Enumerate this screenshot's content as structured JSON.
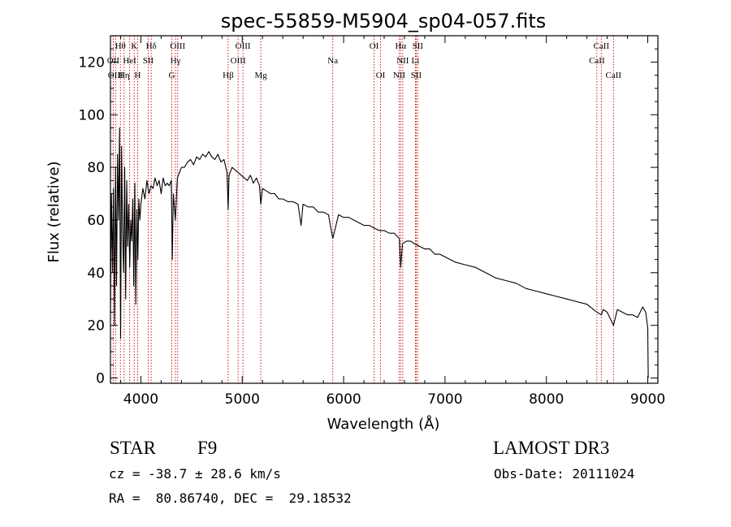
{
  "chart_data": {
    "type": "line",
    "title": "spec-55859-M5904_sp04-057.fits",
    "xlabel": "Wavelength (Å)",
    "ylabel": "Flux (relative)",
    "xlim": [
      3700,
      9100
    ],
    "ylim": [
      -2,
      130
    ],
    "xticks": [
      4000,
      5000,
      6000,
      7000,
      8000,
      9000
    ],
    "yticks": [
      0,
      20,
      40,
      60,
      80,
      100,
      120
    ],
    "grid": false,
    "series": [
      {
        "name": "spectrum",
        "x": [
          3700,
          3710,
          3720,
          3730,
          3740,
          3750,
          3760,
          3770,
          3780,
          3790,
          3800,
          3810,
          3820,
          3830,
          3840,
          3850,
          3860,
          3870,
          3880,
          3890,
          3900,
          3910,
          3920,
          3930,
          3940,
          3950,
          3960,
          3970,
          3980,
          3990,
          4000,
          4020,
          4040,
          4060,
          4080,
          4100,
          4120,
          4140,
          4160,
          4180,
          4200,
          4220,
          4240,
          4260,
          4280,
          4300,
          4310,
          4320,
          4340,
          4360,
          4380,
          4400,
          4430,
          4460,
          4490,
          4520,
          4550,
          4580,
          4610,
          4640,
          4670,
          4700,
          4730,
          4760,
          4790,
          4820,
          4850,
          4861,
          4870,
          4900,
          4930,
          4960,
          4990,
          5020,
          5050,
          5080,
          5110,
          5140,
          5170,
          5183,
          5200,
          5240,
          5280,
          5320,
          5360,
          5400,
          5450,
          5500,
          5550,
          5580,
          5600,
          5650,
          5700,
          5750,
          5800,
          5850,
          5893,
          5950,
          6000,
          6050,
          6100,
          6150,
          6200,
          6250,
          6300,
          6350,
          6400,
          6450,
          6500,
          6550,
          6563,
          6580,
          6620,
          6660,
          6700,
          6750,
          6800,
          6850,
          6900,
          6950,
          7000,
          7100,
          7200,
          7300,
          7400,
          7500,
          7600,
          7700,
          7800,
          7900,
          8000,
          8100,
          8200,
          8300,
          8400,
          8498,
          8542,
          8560,
          8600,
          8662,
          8700,
          8750,
          8800,
          8850,
          8900,
          8950,
          8980,
          9000,
          9005
        ],
        "y": [
          25,
          70,
          40,
          72,
          20,
          80,
          35,
          85,
          60,
          95,
          15,
          88,
          55,
          40,
          80,
          30,
          75,
          50,
          66,
          42,
          60,
          52,
          68,
          35,
          74,
          28,
          64,
          45,
          68,
          60,
          66,
          72,
          68,
          75,
          70,
          73,
          72,
          76,
          73,
          75,
          70,
          76,
          73,
          74,
          73,
          75,
          45,
          70,
          60,
          76,
          78,
          80,
          80,
          82,
          83,
          81,
          84,
          83,
          85,
          84,
          86,
          84,
          83,
          85,
          82,
          83,
          78,
          64,
          77,
          80,
          79,
          78,
          77,
          76,
          75,
          77,
          74,
          76,
          73,
          66,
          72,
          71,
          70,
          70,
          68,
          68,
          67,
          67,
          66,
          58,
          66,
          65,
          65,
          63,
          63,
          62,
          53,
          62,
          61,
          61,
          60,
          59,
          58,
          58,
          57,
          56,
          56,
          55,
          55,
          53,
          42,
          51,
          52,
          52,
          51,
          50,
          49,
          49,
          47,
          47,
          46,
          44,
          43,
          42,
          40,
          38,
          37,
          36,
          34,
          33,
          32,
          31,
          30,
          29,
          28,
          25,
          24,
          26,
          25,
          20,
          26,
          25,
          24,
          24,
          23,
          27,
          25,
          19,
          0
        ]
      }
    ],
    "line_labels": [
      {
        "text": "Hθ",
        "x": 3798,
        "row": 1
      },
      {
        "text": "K",
        "x": 3934,
        "row": 1
      },
      {
        "text": "Hδ",
        "x": 4102,
        "row": 1
      },
      {
        "text": "OIII",
        "x": 4363,
        "row": 1
      },
      {
        "text": "OIII",
        "x": 5007,
        "row": 1
      },
      {
        "text": "OI",
        "x": 6300,
        "row": 1
      },
      {
        "text": "Hα",
        "x": 6563,
        "row": 1
      },
      {
        "text": "SII",
        "x": 6731,
        "row": 1
      },
      {
        "text": "CaII",
        "x": 8542,
        "row": 1
      },
      {
        "text": "OII",
        "x": 3727,
        "row": 2
      },
      {
        "text": "HeI",
        "x": 3889,
        "row": 2
      },
      {
        "text": "SII",
        "x": 4072,
        "row": 2
      },
      {
        "text": "Hγ",
        "x": 4341,
        "row": 2
      },
      {
        "text": "OIII",
        "x": 4959,
        "row": 2
      },
      {
        "text": "Na",
        "x": 5893,
        "row": 2
      },
      {
        "text": "NII",
        "x": 6583,
        "row": 2
      },
      {
        "text": "Li",
        "x": 6708,
        "row": 2
      },
      {
        "text": "CaII",
        "x": 8498,
        "row": 2
      },
      {
        "text": "OIII",
        "x": 3750,
        "row": 3
      },
      {
        "text": "Hη",
        "x": 3835,
        "row": 3
      },
      {
        "text": "H",
        "x": 3968,
        "row": 3
      },
      {
        "text": "G",
        "x": 4305,
        "row": 3
      },
      {
        "text": "Hβ",
        "x": 4861,
        "row": 3
      },
      {
        "text": "Mg",
        "x": 5183,
        "row": 3
      },
      {
        "text": "OI",
        "x": 6364,
        "row": 3
      },
      {
        "text": "NII",
        "x": 6548,
        "row": 3
      },
      {
        "text": "SII",
        "x": 6716,
        "row": 3
      },
      {
        "text": "CaII",
        "x": 8662,
        "row": 3
      }
    ]
  },
  "footer": {
    "object_type": "STAR",
    "subclass": "F9",
    "survey": "LAMOST DR3",
    "cz": "cz = -38.7 ± 28.6 km/s",
    "obs_date": "Obs-Date: 20111024",
    "coords": "RA =  80.86740, DEC =  29.18532"
  },
  "colors": {
    "axis": "#000000",
    "spectrum": "#000000",
    "line_markers": "#cc0000"
  }
}
